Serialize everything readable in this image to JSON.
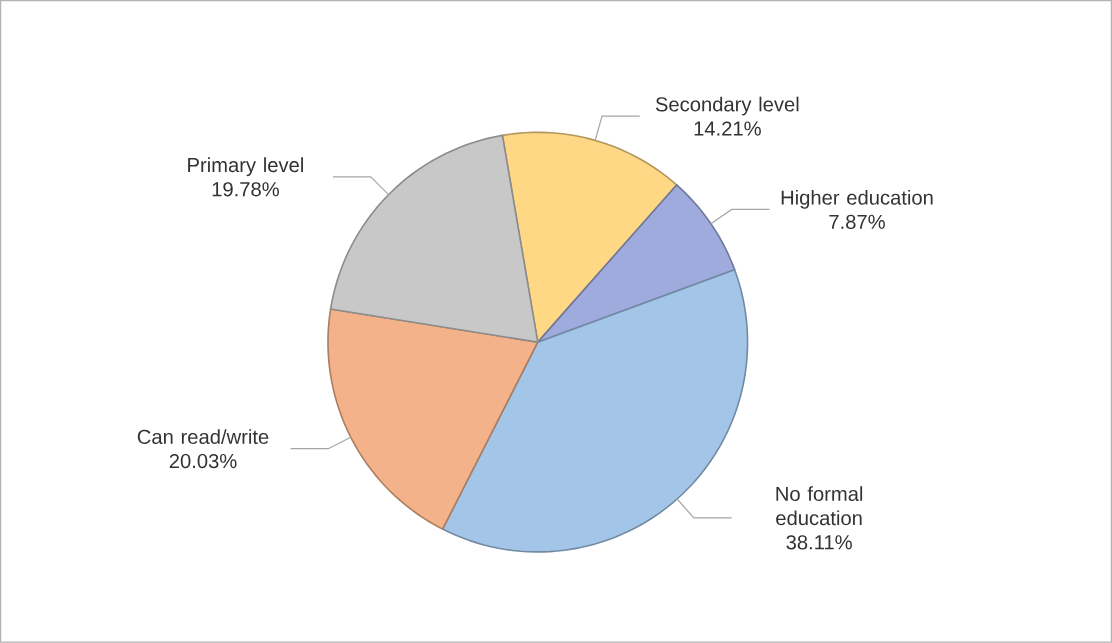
{
  "chart_data": {
    "type": "pie",
    "categories": [
      "Secondary level",
      "Higher education",
      "No formal education",
      "Can read/write",
      "Primary level"
    ],
    "values": [
      14.21,
      7.87,
      38.11,
      20.03,
      19.78
    ],
    "value_labels": [
      "14.21%",
      "7.87%",
      "38.11%",
      "20.03%",
      "19.78%"
    ],
    "colors": [
      "#ffd886",
      "#9fabdd",
      "#a3c6e8",
      "#f4b28a",
      "#c8c8c8"
    ]
  }
}
